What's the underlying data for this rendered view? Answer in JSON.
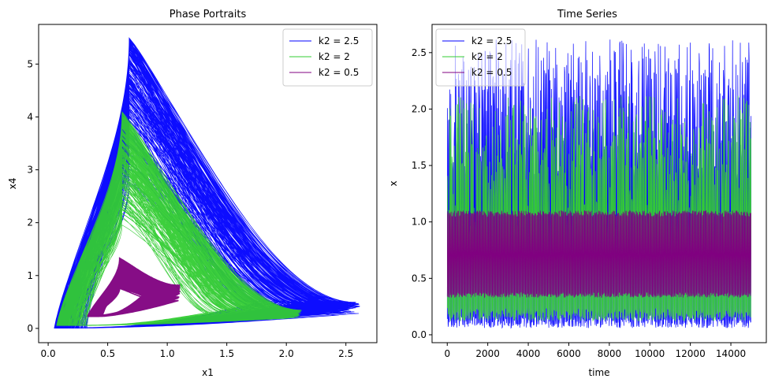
{
  "chart_data": [
    {
      "type": "line",
      "title": "Phase Portraits",
      "xlabel": "x1",
      "ylabel": "x4",
      "xlim": [
        -0.08,
        2.76
      ],
      "ylim": [
        -0.27,
        5.75
      ],
      "xticks": [
        "0.0",
        "0.5",
        "1.0",
        "1.5",
        "2.0",
        "2.5"
      ],
      "yticks": [
        "0",
        "1",
        "2",
        "3",
        "4",
        "5"
      ],
      "xtick_values": [
        0,
        0.5,
        1.0,
        1.5,
        2.0,
        2.5
      ],
      "ytick_values": [
        0,
        1,
        2,
        3,
        4,
        5
      ],
      "grid": false,
      "legend_position": "top-right",
      "series": [
        {
          "name": "k2 = 2.5",
          "color": "#0000ff",
          "x_range": [
            0.05,
            2.62
          ],
          "y_range": [
            0.0,
            5.5
          ],
          "peak_x": 0.68,
          "corner_x": 2.62,
          "corner_y": 0.5
        },
        {
          "name": "k2 = 2",
          "color": "#33cc33",
          "x_range": [
            0.07,
            2.13
          ],
          "y_range": [
            0.05,
            4.1
          ],
          "peak_x": 0.62,
          "corner_x": 2.13,
          "corner_y": 0.3
        },
        {
          "name": "k2 = 0.5",
          "color": "#800080",
          "x_range": [
            0.33,
            1.11
          ],
          "y_range": [
            0.22,
            1.33
          ],
          "peak_x": 0.6,
          "corner_x": 1.11,
          "corner_y": 0.6
        }
      ]
    },
    {
      "type": "line",
      "title": "Time Series",
      "xlabel": "time",
      "ylabel": "x",
      "xlim": [
        -750,
        15750
      ],
      "ylim": [
        -0.07,
        2.75
      ],
      "xticks": [
        "0",
        "2000",
        "4000",
        "6000",
        "8000",
        "10000",
        "12000",
        "14000"
      ],
      "yticks": [
        "0.0",
        "0.5",
        "1.0",
        "1.5",
        "2.0",
        "2.5"
      ],
      "xtick_values": [
        0,
        2000,
        4000,
        6000,
        8000,
        10000,
        12000,
        14000
      ],
      "ytick_values": [
        0.0,
        0.5,
        1.0,
        1.5,
        2.0,
        2.5
      ],
      "grid": false,
      "legend_position": "top-left",
      "series": [
        {
          "name": "k2 = 2.5",
          "color": "#0000ff",
          "x_range": [
            0,
            15000
          ],
          "y_min": 0.06,
          "y_max": 2.62
        },
        {
          "name": "k2 = 2",
          "color": "#33cc33",
          "x_range": [
            0,
            15000
          ],
          "y_min": 0.12,
          "y_max": 2.12
        },
        {
          "name": "k2 = 0.5",
          "color": "#800080",
          "x_range": [
            0,
            15000
          ],
          "y_min": 0.33,
          "y_max": 1.1
        }
      ]
    }
  ]
}
